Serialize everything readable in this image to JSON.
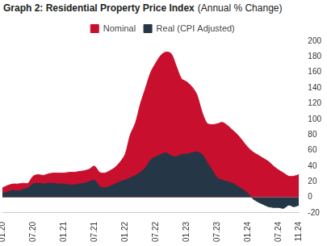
{
  "chart_data": {
    "type": "area",
    "title": "Graph 2: Residential Property Price Index",
    "subtitle": "(Annual % Change)",
    "categories": [
      "01.20",
      null,
      null,
      null,
      null,
      null,
      "07.20",
      null,
      null,
      null,
      null,
      null,
      "01.21",
      null,
      null,
      null,
      null,
      null,
      "07.21",
      null,
      null,
      null,
      null,
      null,
      "01.22",
      null,
      null,
      null,
      null,
      null,
      "07.22",
      null,
      null,
      null,
      null,
      null,
      "01.23",
      null,
      null,
      null,
      null,
      null,
      "07.23",
      null,
      null,
      null,
      null,
      null,
      "01.24",
      null,
      null,
      null,
      null,
      null,
      "07.24",
      null,
      null,
      null,
      "11.24"
    ],
    "series": [
      {
        "name": "Nominal",
        "color": "#C8102E",
        "values": [
          12,
          15,
          17,
          17,
          18,
          18,
          27,
          29,
          28,
          30,
          31,
          31,
          31,
          32,
          32,
          33,
          34,
          36,
          40,
          32,
          31,
          34,
          38,
          45,
          55,
          80,
          95,
          120,
          140,
          160,
          172,
          182,
          186,
          184,
          168,
          152,
          148,
          142,
          132,
          110,
          95,
          93,
          94,
          96,
          92,
          86,
          80,
          72,
          64,
          58,
          54,
          50,
          46,
          40,
          35,
          31,
          27,
          27,
          29
        ]
      },
      {
        "name": "Real (CPI Adjusted)",
        "color": "#253746",
        "values": [
          5,
          7,
          9,
          8,
          10,
          12,
          17,
          18,
          17,
          18,
          18,
          17,
          17,
          16,
          16,
          17,
          18,
          20,
          22,
          14,
          12,
          14,
          17,
          20,
          22,
          25,
          28,
          32,
          38,
          48,
          52,
          55,
          57,
          53,
          52,
          55,
          55,
          57,
          58,
          55,
          45,
          35,
          25,
          22,
          20,
          18,
          14,
          10,
          5,
          -2,
          -6,
          -9,
          -12,
          -13,
          -13,
          -14,
          -10,
          -12,
          -10
        ]
      }
    ],
    "ylim": [
      -20,
      200
    ],
    "yticks": [
      -20,
      0,
      20,
      40,
      60,
      80,
      100,
      120,
      140,
      160,
      180,
      200
    ],
    "grid": false,
    "legend": "top"
  }
}
